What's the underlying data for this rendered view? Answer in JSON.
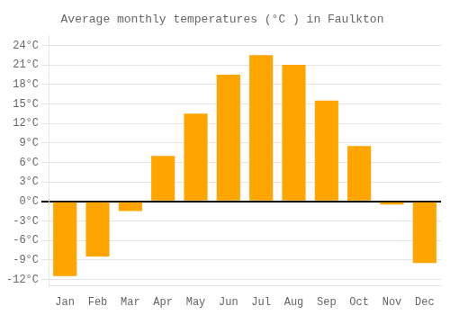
{
  "chart_data": {
    "type": "bar",
    "title": "Average monthly temperatures (°C ) in Faulkton",
    "categories": [
      "Jan",
      "Feb",
      "Mar",
      "Apr",
      "May",
      "Jun",
      "Jul",
      "Aug",
      "Sep",
      "Oct",
      "Nov",
      "Dec"
    ],
    "values": [
      -11.5,
      -8.5,
      -1.5,
      7.0,
      13.5,
      19.5,
      22.5,
      21.0,
      15.5,
      8.5,
      -0.5,
      -9.5
    ],
    "color": "#FFA500",
    "ylim": [
      -13,
      25.5
    ],
    "yticks": [
      {
        "value": -12,
        "label": "-12°C"
      },
      {
        "value": -9,
        "label": "-9°C"
      },
      {
        "value": -6,
        "label": "-6°C"
      },
      {
        "value": -3,
        "label": "-3°C"
      },
      {
        "value": 0,
        "label": "0°C"
      },
      {
        "value": 3,
        "label": "3°C"
      },
      {
        "value": 6,
        "label": "6°C"
      },
      {
        "value": 9,
        "label": "9°C"
      },
      {
        "value": 12,
        "label": "12°C"
      },
      {
        "value": 15,
        "label": "15°C"
      },
      {
        "value": 18,
        "label": "18°C"
      },
      {
        "value": 21,
        "label": "21°C"
      },
      {
        "value": 24,
        "label": "24°C"
      }
    ],
    "grid": true
  }
}
